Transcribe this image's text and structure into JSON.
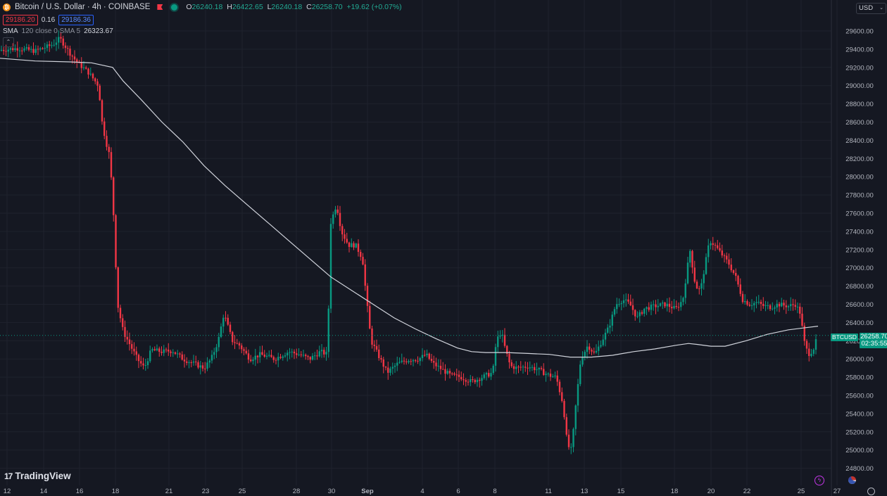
{
  "header": {
    "symbol_title": "Bitcoin / U.S. Dollar · 4h · COINBASE",
    "icons": {
      "symbol": "bitcoin-icon",
      "alert": "flag-icon",
      "status": "live-dot-icon"
    },
    "ohlc": {
      "o_label": "O",
      "o": "26240.18",
      "h_label": "H",
      "h": "26422.65",
      "l_label": "L",
      "l": "26240.18",
      "c_label": "C",
      "c": "26258.70",
      "change": "+19.62 (+0.07%)"
    },
    "sell_price": "29186.20",
    "spread": "0.16",
    "buy_price": "29186.36",
    "indicator": {
      "name": "SMA",
      "params": "120 close 0 SMA 5",
      "value": "26323.67"
    },
    "collapse_glyph": "⌃"
  },
  "currency_selector": {
    "value": "USD",
    "chevron": "⌄"
  },
  "price_tag": {
    "symbol": "BTCUSD",
    "price": "26258.70",
    "countdown": "02:35:55"
  },
  "footer": {
    "logo_text": "TradingView",
    "logo_mark": "17"
  },
  "colors": {
    "background": "#151822",
    "up": "#089981",
    "down": "#f23645",
    "sma": "#d1d4dc",
    "grid": "#1f222d",
    "text": "#b2b5be"
  },
  "chart_data": {
    "type": "candlestick",
    "symbol": "BTCUSD",
    "y_ticks": [
      "29600.00",
      "29400.00",
      "29200.00",
      "29000.00",
      "28800.00",
      "28600.00",
      "28400.00",
      "28200.00",
      "28000.00",
      "27800.00",
      "27600.00",
      "27400.00",
      "27200.00",
      "27000.00",
      "26800.00",
      "26600.00",
      "26400.00",
      "26200.00",
      "26000.00",
      "25800.00",
      "25600.00",
      "25400.00",
      "25200.00",
      "25000.00",
      "24800.00"
    ],
    "x_ticks": [
      "12",
      "14",
      "16",
      "18",
      "21",
      "23",
      "25",
      "28",
      "30",
      "Sep",
      "4",
      "6",
      "8",
      "11",
      "13",
      "15",
      "18",
      "20",
      "22",
      "25",
      "27"
    ],
    "ylim": [
      24600,
      29800
    ],
    "current_price": 26258.7,
    "anchors": [
      [
        0,
        29390
      ],
      [
        25,
        29410
      ],
      [
        50,
        29380
      ],
      [
        75,
        29450
      ],
      [
        85,
        29520
      ],
      [
        100,
        29350
      ],
      [
        110,
        29250
      ],
      [
        125,
        29150
      ],
      [
        140,
        29000
      ],
      [
        145,
        28600
      ],
      [
        150,
        28400
      ],
      [
        155,
        28250
      ],
      [
        160,
        27800
      ],
      [
        167,
        26600
      ],
      [
        175,
        26300
      ],
      [
        185,
        26150
      ],
      [
        195,
        26000
      ],
      [
        205,
        25900
      ],
      [
        215,
        26100
      ],
      [
        230,
        26080
      ],
      [
        245,
        26090
      ],
      [
        260,
        26000
      ],
      [
        275,
        25950
      ],
      [
        290,
        25900
      ],
      [
        300,
        26000
      ],
      [
        310,
        26200
      ],
      [
        318,
        26500
      ],
      [
        330,
        26200
      ],
      [
        340,
        26150
      ],
      [
        355,
        26000
      ],
      [
        370,
        26050
      ],
      [
        390,
        26000
      ],
      [
        410,
        26080
      ],
      [
        425,
        26050
      ],
      [
        440,
        26000
      ],
      [
        455,
        26080
      ],
      [
        465,
        26050
      ],
      [
        470,
        27500
      ],
      [
        478,
        27700
      ],
      [
        485,
        27400
      ],
      [
        495,
        27250
      ],
      [
        505,
        27250
      ],
      [
        515,
        27100
      ],
      [
        520,
        26700
      ],
      [
        527,
        26200
      ],
      [
        540,
        26000
      ],
      [
        550,
        25850
      ],
      [
        565,
        25950
      ],
      [
        580,
        25990
      ],
      [
        595,
        26000
      ],
      [
        605,
        26050
      ],
      [
        615,
        25950
      ],
      [
        625,
        25900
      ],
      [
        640,
        25820
      ],
      [
        655,
        25800
      ],
      [
        670,
        25750
      ],
      [
        685,
        25800
      ],
      [
        700,
        25850
      ],
      [
        705,
        26200
      ],
      [
        712,
        26300
      ],
      [
        718,
        26100
      ],
      [
        725,
        25920
      ],
      [
        735,
        25900
      ],
      [
        750,
        25920
      ],
      [
        765,
        25880
      ],
      [
        780,
        25820
      ],
      [
        790,
        25800
      ],
      [
        800,
        25500
      ],
      [
        806,
        25050
      ],
      [
        812,
        25000
      ],
      [
        818,
        25500
      ],
      [
        825,
        26000
      ],
      [
        835,
        26150
      ],
      [
        845,
        26050
      ],
      [
        855,
        26200
      ],
      [
        865,
        26350
      ],
      [
        875,
        26600
      ],
      [
        885,
        26650
      ],
      [
        895,
        26600
      ],
      [
        905,
        26450
      ],
      [
        915,
        26550
      ],
      [
        930,
        26580
      ],
      [
        945,
        26600
      ],
      [
        960,
        26550
      ],
      [
        970,
        26650
      ],
      [
        980,
        27200
      ],
      [
        988,
        26800
      ],
      [
        995,
        26750
      ],
      [
        1002,
        27050
      ],
      [
        1008,
        27300
      ],
      [
        1015,
        27250
      ],
      [
        1025,
        27150
      ],
      [
        1035,
        27050
      ],
      [
        1045,
        26900
      ],
      [
        1055,
        26650
      ],
      [
        1065,
        26600
      ],
      [
        1075,
        26620
      ],
      [
        1085,
        26580
      ],
      [
        1095,
        26570
      ],
      [
        1105,
        26600
      ],
      [
        1120,
        26580
      ],
      [
        1130,
        26600
      ],
      [
        1137,
        26500
      ],
      [
        1142,
        26200
      ],
      [
        1148,
        26050
      ],
      [
        1155,
        26100
      ],
      [
        1162,
        26258
      ]
    ],
    "sma": {
      "name": "SMA",
      "period": 120,
      "anchors": [
        [
          0,
          29300
        ],
        [
          50,
          29270
        ],
        [
          100,
          29260
        ],
        [
          130,
          29250
        ],
        [
          160,
          29200
        ],
        [
          175,
          29050
        ],
        [
          200,
          28850
        ],
        [
          230,
          28600
        ],
        [
          260,
          28380
        ],
        [
          290,
          28120
        ],
        [
          320,
          27900
        ],
        [
          350,
          27700
        ],
        [
          380,
          27500
        ],
        [
          410,
          27300
        ],
        [
          440,
          27100
        ],
        [
          470,
          26900
        ],
        [
          500,
          26750
        ],
        [
          530,
          26600
        ],
        [
          560,
          26450
        ],
        [
          590,
          26330
        ],
        [
          620,
          26220
        ],
        [
          650,
          26120
        ],
        [
          670,
          26080
        ],
        [
          690,
          26070
        ],
        [
          720,
          26070
        ],
        [
          750,
          26060
        ],
        [
          780,
          26050
        ],
        [
          810,
          26020
        ],
        [
          840,
          26020
        ],
        [
          870,
          26040
        ],
        [
          900,
          26080
        ],
        [
          930,
          26110
        ],
        [
          960,
          26150
        ],
        [
          978,
          26170
        ],
        [
          990,
          26160
        ],
        [
          1010,
          26140
        ],
        [
          1030,
          26140
        ],
        [
          1060,
          26200
        ],
        [
          1090,
          26270
        ],
        [
          1120,
          26320
        ],
        [
          1162,
          26360
        ]
      ]
    }
  }
}
